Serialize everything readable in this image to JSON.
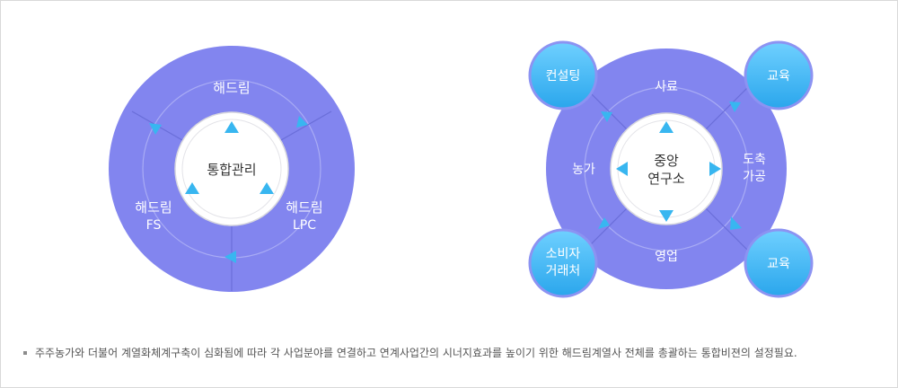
{
  "colors": {
    "ring": "#8285ef",
    "ring_line": "#6a6ed9",
    "inner_border": "#d8d8de",
    "arrow": "#38b6f0",
    "bubble_top": "#6fd0ff",
    "bubble_bottom": "#2aa6ec",
    "bubble_border": "#8c93f2"
  },
  "left_diagram": {
    "center": "통합관리",
    "segments": [
      {
        "lines": [
          "해드림"
        ]
      },
      {
        "lines": [
          "해드림",
          "FS"
        ]
      },
      {
        "lines": [
          "해드림",
          "LPC"
        ]
      }
    ]
  },
  "right_diagram": {
    "center": [
      "중앙",
      "연구소"
    ],
    "segments": [
      {
        "lines": [
          "사료"
        ]
      },
      {
        "lines": [
          "도축",
          "가공"
        ]
      },
      {
        "lines": [
          "영업"
        ]
      },
      {
        "lines": [
          "농가"
        ]
      }
    ],
    "bubbles": [
      {
        "lines": [
          "컨설팅"
        ]
      },
      {
        "lines": [
          "교육"
        ]
      },
      {
        "lines": [
          "소비자",
          "거래처"
        ]
      },
      {
        "lines": [
          "교육"
        ]
      }
    ]
  },
  "footnote": "주주농가와 더불어 계열화체계구축이 심화됨에 따라 각 사업분야를 연결하고 연계사업간의 시너지효과를 높이기 위한 해드림계열사 전체를 총괄하는 통합비젼의 설정필요."
}
